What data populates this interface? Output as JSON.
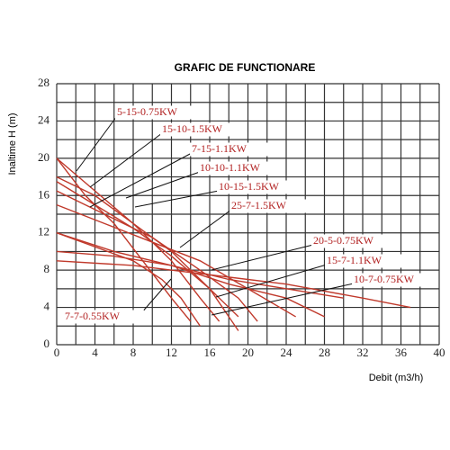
{
  "chart_data": {
    "type": "line",
    "title": "GRAFIC DE FUNCTIONARE",
    "x_label": "Debit (m3/h)",
    "y_label": "Inaltime H (m)",
    "xlim": [
      0,
      40
    ],
    "xticks": [
      0,
      4,
      8,
      12,
      16,
      20,
      24,
      28,
      32,
      36,
      40
    ],
    "ylim": [
      0,
      28
    ],
    "yticks": [
      0,
      4,
      8,
      12,
      16,
      20,
      24,
      28
    ],
    "grid": true,
    "series": [
      {
        "name": "5-15-0.75KW",
        "color": "#c0392b",
        "x": [
          0,
          3,
          6,
          9,
          12,
          14
        ],
        "values": [
          20,
          16,
          13,
          9,
          5,
          2.5
        ]
      },
      {
        "name": "15-10-1.5KW",
        "color": "#c0392b",
        "x": [
          0,
          4,
          8,
          12,
          16,
          19
        ],
        "values": [
          18,
          16,
          13,
          10,
          6,
          3
        ]
      },
      {
        "name": "7-15-1.1KW",
        "color": "#c0392b",
        "x": [
          0,
          4,
          8,
          12,
          15,
          17
        ],
        "values": [
          20,
          16.5,
          13,
          9,
          5,
          2.5
        ]
      },
      {
        "name": "10-10-1.1KW",
        "color": "#c0392b",
        "x": [
          0,
          4,
          8,
          12,
          16,
          19
        ],
        "values": [
          17.5,
          15,
          12.5,
          9.5,
          6,
          1.5
        ]
      },
      {
        "name": "10-15-1.5KW",
        "color": "#c0392b",
        "x": [
          0,
          5,
          10,
          15,
          19,
          21
        ],
        "values": [
          16.5,
          14,
          11.5,
          8,
          5,
          2.5
        ]
      },
      {
        "name": "25-7-1.5KW",
        "color": "#c0392b",
        "x": [
          0,
          5,
          10,
          15,
          20,
          25
        ],
        "values": [
          15,
          13,
          11,
          9,
          6,
          3
        ]
      },
      {
        "name": "20-5-0.75KW",
        "color": "#c0392b",
        "x": [
          0,
          6,
          12,
          18,
          24,
          28
        ],
        "values": [
          12,
          10,
          8.5,
          6.5,
          5,
          3
        ]
      },
      {
        "name": "15-7-1.1KW",
        "color": "#c0392b",
        "x": [
          0,
          6,
          12,
          18,
          24,
          30
        ],
        "values": [
          10,
          9.5,
          8.5,
          7,
          6,
          5
        ]
      },
      {
        "name": "10-7-0.75KW",
        "color": "#c0392b",
        "x": [
          0,
          8,
          16,
          24,
          32,
          37
        ],
        "values": [
          9,
          8.5,
          7.5,
          6.5,
          5,
          4
        ]
      },
      {
        "name": "7-7-0.55KW",
        "color": "#c0392b",
        "x": [
          0,
          4,
          8,
          11,
          13,
          15
        ],
        "values": [
          12,
          10.5,
          9,
          7,
          5,
          2
        ]
      }
    ]
  }
}
